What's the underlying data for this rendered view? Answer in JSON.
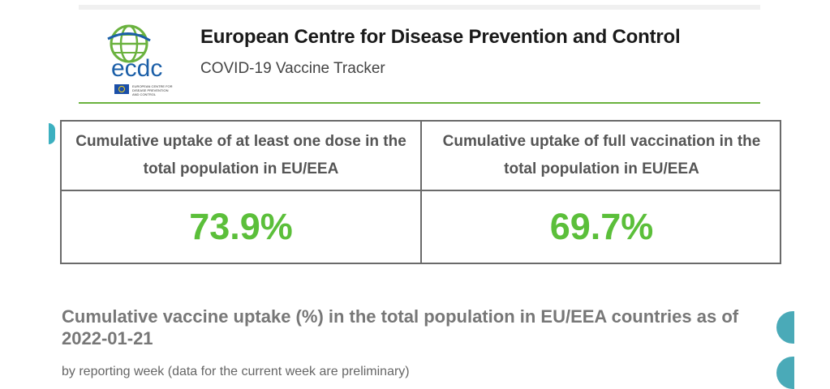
{
  "header": {
    "organization": "European Centre for Disease Prevention and Control",
    "app_title": "COVID-19 Vaccine Tracker",
    "logo_text": "ecdc",
    "logo_caption": "EUROPEAN CENTRE FOR DISEASE PREVENTION AND CONTROL",
    "accent_color": "#6ab23e"
  },
  "kpis": [
    {
      "label": "Cumulative uptake of at least one dose in the total population in EU/EEA",
      "value": "73.9%"
    },
    {
      "label": "Cumulative uptake of full vaccination in the total population in EU/EEA",
      "value": "69.7%"
    }
  ],
  "kpi_value_color": "#5bbf3a",
  "chart_section": {
    "title": "Cumulative vaccine uptake (%) in the total population in EU/EEA countries as of 2022-01-21",
    "subtitle": "by reporting week (data for the current week are preliminary)"
  },
  "side_controls": [
    "side-button-icon",
    "side-button-icon"
  ]
}
